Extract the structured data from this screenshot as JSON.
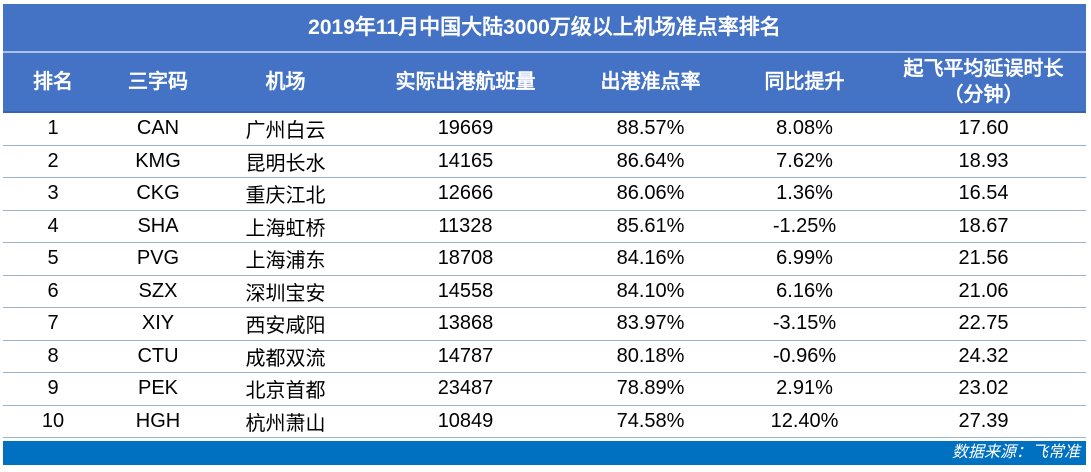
{
  "chart_data": {
    "type": "table",
    "title": "2019年11月中国大陆3000万级以上机场准点率排名",
    "columns": [
      "排名",
      "三字码",
      "机场",
      "实际出港航班量",
      "出港准点率",
      "同比提升",
      "起飞平均延误时长\n（分钟）"
    ],
    "rows": [
      [
        "1",
        "CAN",
        "广州白云",
        "19669",
        "88.57%",
        "8.08%",
        "17.60"
      ],
      [
        "2",
        "KMG",
        "昆明长水",
        "14165",
        "86.64%",
        "7.62%",
        "18.93"
      ],
      [
        "3",
        "CKG",
        "重庆江北",
        "12666",
        "86.06%",
        "1.36%",
        "16.54"
      ],
      [
        "4",
        "SHA",
        "上海虹桥",
        "11328",
        "85.61%",
        "-1.25%",
        "18.67"
      ],
      [
        "5",
        "PVG",
        "上海浦东",
        "18708",
        "84.16%",
        "6.99%",
        "21.56"
      ],
      [
        "6",
        "SZX",
        "深圳宝安",
        "14558",
        "84.10%",
        "6.16%",
        "21.06"
      ],
      [
        "7",
        "XIY",
        "西安咸阳",
        "13868",
        "83.97%",
        "-3.15%",
        "22.75"
      ],
      [
        "8",
        "CTU",
        "成都双流",
        "14787",
        "80.18%",
        "-0.96%",
        "24.32"
      ],
      [
        "9",
        "PEK",
        "北京首都",
        "23487",
        "78.89%",
        "2.91%",
        "23.02"
      ],
      [
        "10",
        "HGH",
        "杭州萧山",
        "10849",
        "74.58%",
        "12.40%",
        "27.39"
      ]
    ],
    "source": "数据来源：飞常准"
  },
  "colors": {
    "title_header_blue": "#4472C4",
    "footer_blue": "#0070C0",
    "row_border": "#9CB4CB",
    "header_text": "#FFFFFF",
    "body_text": "#000000"
  }
}
